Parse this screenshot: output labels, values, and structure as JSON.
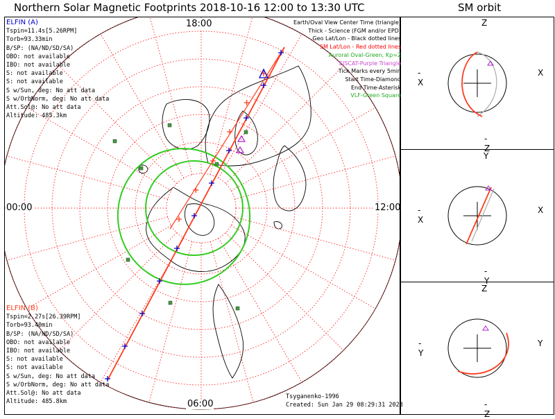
{
  "title": "Northern Solar Magnetic Footprints 2018-10-16 12:00 to 13:30 UTC",
  "orbit_title": "SM orbit",
  "colors": {
    "probe_a": "#0000cc",
    "probe_b": "#ff3b1c",
    "track": "#ff3b1c",
    "grid": "#ff2020",
    "aurora": "#33cc22",
    "eiscat": "#aa22cc",
    "vlf": "#449944"
  },
  "clock_labels": {
    "top": "18:00",
    "left": "00:00",
    "right": "12:00",
    "bottom": "06:00"
  },
  "probe_a": {
    "name": "ELFIN (A)",
    "lines": [
      "Tspin=11.4s[5.26RPM]",
      "Torb=93.33min",
      "B/SP: (NA/ND/SD/SA)",
      "OBO: not available",
      "IBO: not available",
      "S: not available",
      "S: not available",
      "S w/Sun, deg: No att data",
      "S w/OrbNorm, deg: No att data",
      "Att.Sol@: No att data",
      "Altitude: 485.3km"
    ]
  },
  "probe_b": {
    "name": "ELFIN (B)",
    "lines": [
      "Tspin=2.27s[26.39RPM]",
      "Torb=93.40min",
      "B/SP: (NA/ND/SD/SA)",
      "OBO: not available",
      "IBO: not available",
      "S: not available",
      "S: not available",
      "S w/Sun, deg: No att data",
      "S w/OrbNorm, deg: No att data",
      "Att.Sol@: No att data",
      "Altitude: 485.8km"
    ]
  },
  "legend": [
    {
      "text": "Earth/Oval View Center Time (triangle)",
      "color": "#000000"
    },
    {
      "text": "Thick - Science (FGM and/or EPD)",
      "color": "#000000"
    },
    {
      "text": "Geo Lat/Lon - Black dotted lines",
      "color": "#000000"
    },
    {
      "text": "SM Lat/Lon - Red dotted lines",
      "color": "#ff0000"
    },
    {
      "text": "Auroral Oval-Green, Kp=2",
      "color": "#22aa22"
    },
    {
      "text": "EISCAT-Purple Triangle",
      "color": "#cc44cc"
    },
    {
      "text": "Tick Marks every 5min",
      "color": "#000000"
    },
    {
      "text": "Start Time-Diamond",
      "color": "#000000"
    },
    {
      "text": "End Time-Asterisk",
      "color": "#000000"
    },
    {
      "text": "VLF-Green Square",
      "color": "#22aa22"
    }
  ],
  "footer": {
    "model": "Tsyganenko-1996",
    "created": "Created: Sun Jan 29 08:29:31 2023"
  },
  "orbit_panels": [
    {
      "top": "Z",
      "bottom": "-Z",
      "left": "-X",
      "right": "X"
    },
    {
      "top": "Y",
      "bottom": "-Y",
      "left": "-X",
      "right": "X"
    },
    {
      "top": "Z",
      "bottom": "-Z",
      "left": "-Y",
      "right": "Y"
    }
  ],
  "chart_data": {
    "type": "polar-footprint",
    "projection": "north polar, SM coordinates",
    "sm_latitude_rings_deg": [
      80,
      70,
      60,
      50,
      40,
      30,
      20
    ],
    "mlt_spokes_hours": [
      0,
      1,
      2,
      3,
      4,
      5,
      6,
      7,
      8,
      9,
      10,
      11,
      12,
      13,
      14,
      15,
      16,
      17,
      18,
      19,
      20,
      21,
      22,
      23
    ],
    "tick_interval_min": 5,
    "auroral_oval_kp": 2,
    "vlf_stations_visible": 8
  }
}
